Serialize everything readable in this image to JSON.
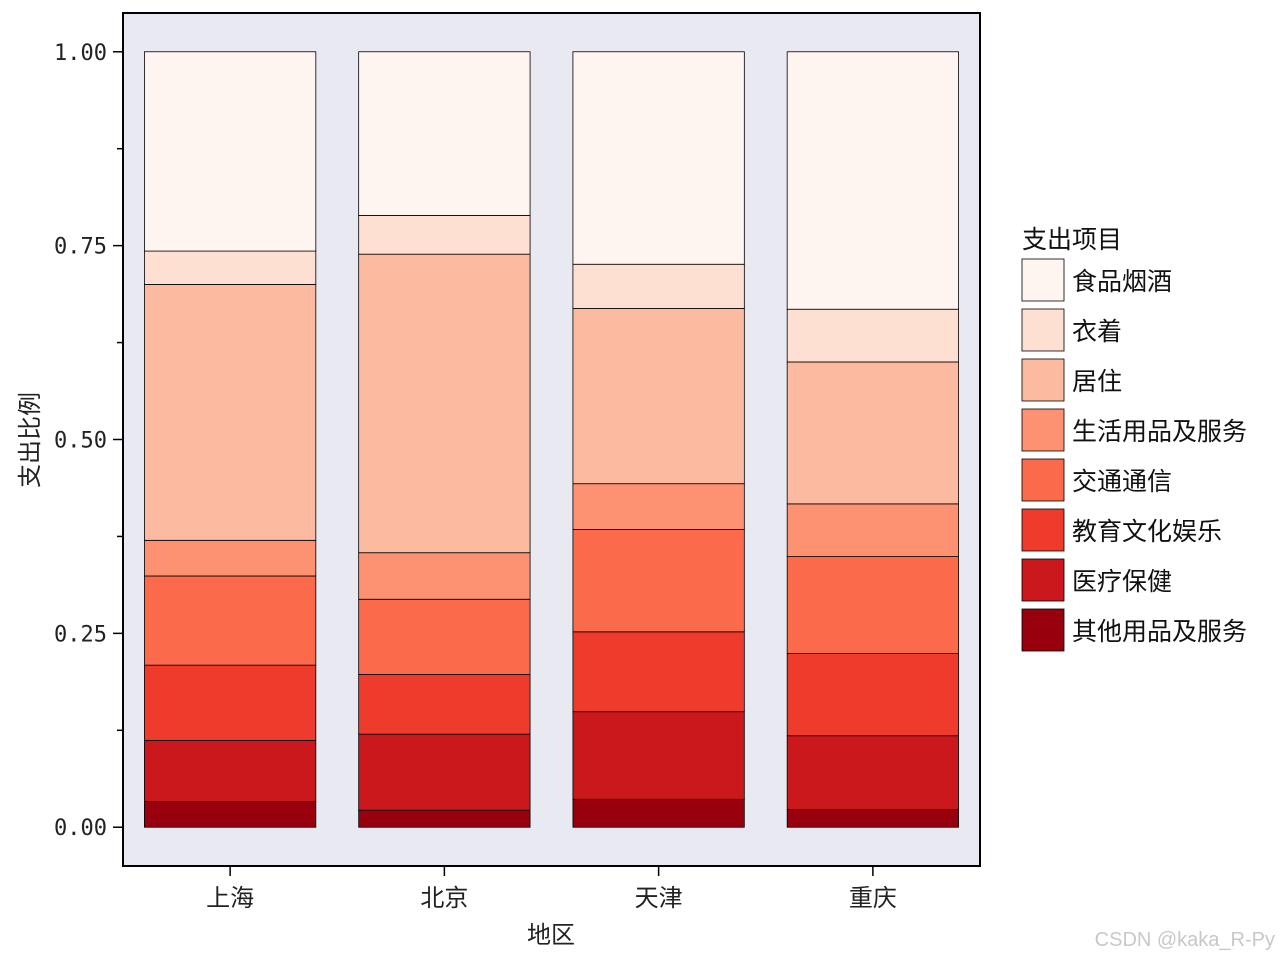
{
  "chart_data": {
    "type": "bar",
    "stacked": true,
    "normalized": true,
    "categories": [
      "上海",
      "北京",
      "天津",
      "重庆"
    ],
    "xlabel": "地区",
    "ylabel": "支出比例",
    "ylim": [
      -0.05,
      1.05
    ],
    "yticks": [
      0.0,
      0.25,
      0.5,
      0.75,
      1.0
    ],
    "ytick_labels": [
      "0.00",
      "0.25",
      "0.50",
      "0.75",
      "1.00"
    ],
    "grid": false,
    "legend": {
      "title": "支出项目",
      "placement": "right"
    },
    "series": [
      {
        "name": "其他用品及服务",
        "color": "#99000d",
        "values": [
          0.033,
          0.022,
          0.036,
          0.023
        ]
      },
      {
        "name": "医疗保健",
        "color": "#cb181d",
        "values": [
          0.079,
          0.098,
          0.113,
          0.095
        ]
      },
      {
        "name": "教育文化娱乐",
        "color": "#ef3b2c",
        "values": [
          0.097,
          0.077,
          0.103,
          0.106
        ]
      },
      {
        "name": "交通通信",
        "color": "#fb6a4a",
        "values": [
          0.115,
          0.097,
          0.132,
          0.125
        ]
      },
      {
        "name": "生活用品及服务",
        "color": "#fc9272",
        "values": [
          0.046,
          0.06,
          0.059,
          0.068
        ]
      },
      {
        "name": "居住",
        "color": "#fcbba1",
        "values": [
          0.33,
          0.385,
          0.226,
          0.183
        ]
      },
      {
        "name": "衣着",
        "color": "#fee0d2",
        "values": [
          0.043,
          0.05,
          0.057,
          0.068
        ]
      },
      {
        "name": "食品烟酒",
        "color": "#fff5f0",
        "values": [
          0.257,
          0.211,
          0.274,
          0.332
        ]
      }
    ]
  },
  "watermark": "CSDN @kaka_R-Py"
}
